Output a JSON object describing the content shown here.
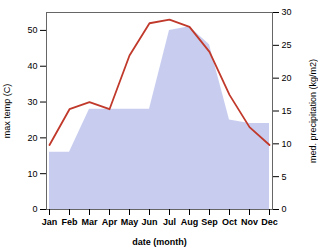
{
  "chart_data": {
    "type": "line",
    "categories": [
      "Jan",
      "Feb",
      "Mar",
      "Apr",
      "May",
      "Jun",
      "Jul",
      "Aug",
      "Sep",
      "Oct",
      "Nov",
      "Dec"
    ],
    "series": [
      {
        "type": "area",
        "color": "#b0b8e8",
        "values": [
          16,
          16,
          28,
          28,
          28,
          28,
          50,
          51,
          46,
          25,
          24,
          24
        ]
      },
      {
        "type": "line",
        "color": "#c0392b",
        "values": [
          18,
          28,
          30,
          28,
          43,
          52,
          53,
          51,
          44,
          32,
          23,
          18
        ]
      }
    ],
    "xlabel": "date (month)",
    "ylabel": "max temp (C)",
    "y2label": "med. precipitation (kg/m2)",
    "ylim": [
      0,
      55
    ],
    "yticks": [
      0,
      10,
      20,
      30,
      40,
      50
    ],
    "y2lim": [
      0,
      30
    ],
    "y2ticks": [
      0,
      5,
      10,
      15,
      20,
      25,
      30
    ],
    "grid": false
  }
}
